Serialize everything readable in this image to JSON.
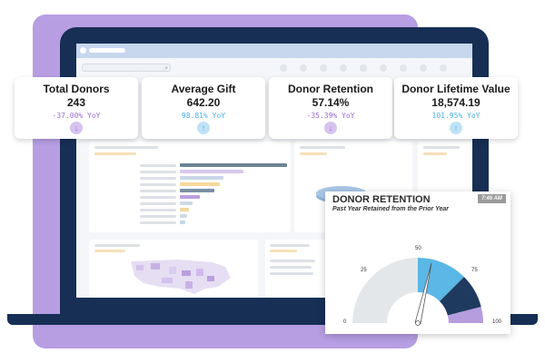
{
  "search": {
    "icon": "search-icon"
  },
  "kpis": [
    {
      "title": "Total Donors",
      "value": "243",
      "yoy": "-37.00% YoY",
      "direction": "down",
      "arrow": "↓",
      "color": "#9a6ad0",
      "btn_bg": "#d6c3ef"
    },
    {
      "title": "Average Gift",
      "value": "642.20",
      "yoy": "98.81% YoY",
      "direction": "up",
      "arrow": "↑",
      "color": "#4ab0e4",
      "btn_bg": "#bfe2f5"
    },
    {
      "title": "Donor Retention",
      "value": "57.14%",
      "yoy": "-35.39% YoY",
      "direction": "down",
      "arrow": "↓",
      "color": "#9a6ad0",
      "btn_bg": "#d6c3ef"
    },
    {
      "title": "Donor Lifetime Value",
      "value": "18,574.19",
      "yoy": "101.95% YoY",
      "direction": "up",
      "arrow": "↑",
      "color": "#4ab0e4",
      "btn_bg": "#bfe2f5"
    }
  ],
  "retention_card": {
    "title": "DONOR RETENTION",
    "subtitle": "Past Year Retained from the Prior Year",
    "time": "7:46 AM",
    "gauge_labels": {
      "min": "0",
      "l25": "25",
      "l50": "50",
      "l75": "75",
      "max": "100"
    },
    "needle_value": 57.14,
    "colors": {
      "grey": "#e4e7ea",
      "blue": "#5ab7e6",
      "navy": "#1e3a5f",
      "purple": "#b59dde"
    }
  }
}
